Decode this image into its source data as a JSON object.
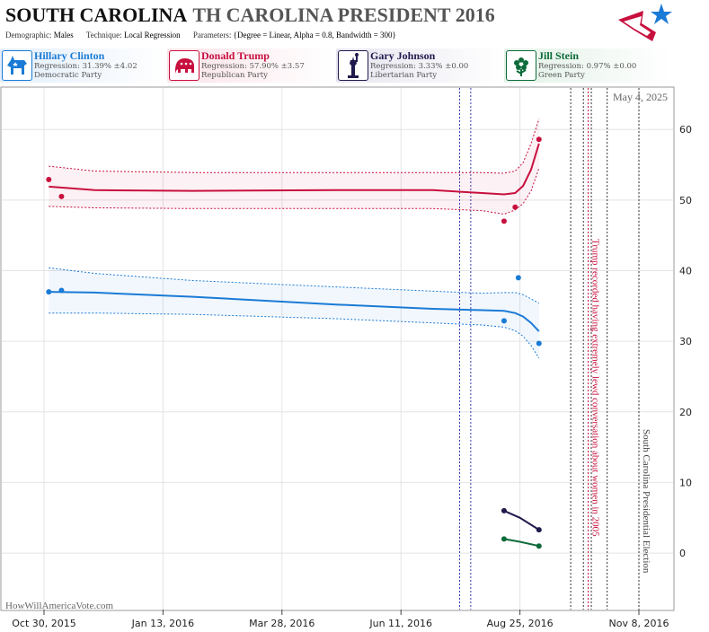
{
  "header": {
    "title_state": "SOUTH CAROLINA",
    "title_rest": "TH CAROLINA PRESIDENT 2016",
    "demographic_label": "Demographic:",
    "demographic_value": "Males",
    "technique_label": "Technique:",
    "technique_value": "Local Regression",
    "parameters_label": "Parameters:",
    "parameters_value": "{Degree = Linear, Alpha = 0.8, Bandwidth = 300}"
  },
  "candidates": [
    {
      "name": "Hillary Clinton",
      "regression": "Regression: 31.39% ±4.02",
      "party": "Democratic Party",
      "color": "#1a7bd6",
      "icon": "donkey-icon"
    },
    {
      "name": "Donald Trump",
      "regression": "Regression: 57.90% ±3.57",
      "party": "Republican Party",
      "color": "#c8103f",
      "icon": "elephant-icon"
    },
    {
      "name": "Gary Johnson",
      "regression": "Regression: 3.33% ±0.00",
      "party": "Libertarian Party",
      "color": "#1f1a4d",
      "icon": "liberty-statue-icon"
    },
    {
      "name": "Jill Stein",
      "regression": "Regression: 0.97% ±0.00",
      "party": "Green Party",
      "color": "#0d6b3a",
      "icon": "flower-icon"
    }
  ],
  "chart_data": {
    "type": "line",
    "date_label": "May 4, 2025",
    "watermark": "HowWillAmericaVote.com",
    "x_ticks": [
      "Oct 30, 2015",
      "Jan 13, 2016",
      "Mar 28, 2016",
      "Jun 11, 2016",
      "Aug 25, 2016",
      "Nov 8, 2016"
    ],
    "ylim": [
      -8,
      66
    ],
    "y_ticks": [
      0,
      10,
      20,
      30,
      40,
      50,
      60
    ],
    "grid": true,
    "series": [
      {
        "name": "Donald Trump",
        "color": "#c8103f",
        "points": [
          [
            "2015-11-02",
            52.9
          ],
          [
            "2015-11-10",
            50.5
          ],
          [
            "2016-08-15",
            47.0
          ],
          [
            "2016-08-22",
            49.0
          ],
          [
            "2016-09-06",
            58.6
          ]
        ],
        "fit": [
          [
            "2015-11-02",
            51.9
          ],
          [
            "2015-12-01",
            51.4
          ],
          [
            "2016-02-01",
            51.3
          ],
          [
            "2016-05-01",
            51.4
          ],
          [
            "2016-07-01",
            51.4
          ],
          [
            "2016-08-01",
            51.0
          ],
          [
            "2016-08-15",
            50.8
          ],
          [
            "2016-08-22",
            51.0
          ],
          [
            "2016-08-27",
            52.0
          ],
          [
            "2016-09-01",
            54.3
          ],
          [
            "2016-09-06",
            58.0
          ]
        ],
        "band_upper": [
          [
            "2015-11-02",
            54.8
          ],
          [
            "2015-12-01",
            54.1
          ],
          [
            "2016-02-01",
            53.9
          ],
          [
            "2016-05-01",
            53.9
          ],
          [
            "2016-07-01",
            53.9
          ],
          [
            "2016-08-01",
            53.9
          ],
          [
            "2016-08-15",
            53.8
          ],
          [
            "2016-08-22",
            54.1
          ],
          [
            "2016-08-27",
            55.3
          ],
          [
            "2016-09-01",
            58.0
          ],
          [
            "2016-09-06",
            61.5
          ]
        ],
        "band_lower": [
          [
            "2015-11-02",
            49.1
          ],
          [
            "2015-12-01",
            48.9
          ],
          [
            "2016-02-01",
            48.8
          ],
          [
            "2016-05-01",
            48.8
          ],
          [
            "2016-07-01",
            48.8
          ],
          [
            "2016-08-01",
            48.5
          ],
          [
            "2016-08-15",
            48.0
          ],
          [
            "2016-08-22",
            48.6
          ],
          [
            "2016-08-27",
            49.5
          ],
          [
            "2016-09-01",
            51.3
          ],
          [
            "2016-09-06",
            54.5
          ]
        ]
      },
      {
        "name": "Hillary Clinton",
        "color": "#1a7bd6",
        "points": [
          [
            "2015-11-02",
            37.0
          ],
          [
            "2015-11-10",
            37.2
          ],
          [
            "2016-08-15",
            32.9
          ],
          [
            "2016-08-24",
            39.0
          ],
          [
            "2016-09-06",
            29.7
          ]
        ],
        "fit": [
          [
            "2015-11-02",
            37.0
          ],
          [
            "2015-12-01",
            36.9
          ],
          [
            "2016-02-01",
            36.3
          ],
          [
            "2016-05-01",
            35.2
          ],
          [
            "2016-07-01",
            34.6
          ],
          [
            "2016-08-01",
            34.4
          ],
          [
            "2016-08-15",
            34.3
          ],
          [
            "2016-08-22",
            34.0
          ],
          [
            "2016-08-27",
            33.5
          ],
          [
            "2016-09-01",
            32.6
          ],
          [
            "2016-09-06",
            31.4
          ]
        ],
        "band_upper": [
          [
            "2015-11-02",
            40.4
          ],
          [
            "2015-12-01",
            39.6
          ],
          [
            "2016-02-01",
            38.6
          ],
          [
            "2016-05-01",
            37.7
          ],
          [
            "2016-07-01",
            37.1
          ],
          [
            "2016-08-01",
            36.8
          ],
          [
            "2016-08-15",
            36.9
          ],
          [
            "2016-08-22",
            36.9
          ],
          [
            "2016-08-27",
            36.6
          ],
          [
            "2016-09-01",
            36.0
          ],
          [
            "2016-09-06",
            35.4
          ]
        ],
        "band_lower": [
          [
            "2015-11-02",
            34.0
          ],
          [
            "2015-12-01",
            34.0
          ],
          [
            "2016-02-01",
            33.8
          ],
          [
            "2016-05-01",
            33.2
          ],
          [
            "2016-07-01",
            32.6
          ],
          [
            "2016-08-01",
            32.3
          ],
          [
            "2016-08-15",
            32.0
          ],
          [
            "2016-08-22",
            31.5
          ],
          [
            "2016-08-27",
            30.7
          ],
          [
            "2016-09-01",
            29.4
          ],
          [
            "2016-09-06",
            27.6
          ]
        ]
      },
      {
        "name": "Gary Johnson",
        "color": "#1f1a4d",
        "points": [
          [
            "2016-08-15",
            6.0
          ],
          [
            "2016-09-06",
            3.3
          ]
        ],
        "fit": [
          [
            "2016-08-15",
            6.0
          ],
          [
            "2016-08-25",
            5.0
          ],
          [
            "2016-09-06",
            3.3
          ]
        ]
      },
      {
        "name": "Jill Stein",
        "color": "#0d6b3a",
        "points": [
          [
            "2016-08-15",
            2.0
          ],
          [
            "2016-09-06",
            1.0
          ]
        ],
        "fit": [
          [
            "2016-08-15",
            2.0
          ],
          [
            "2016-08-25",
            1.6
          ],
          [
            "2016-09-06",
            1.0
          ]
        ]
      }
    ],
    "vlines_blue": [
      "2016-07-18",
      "2016-07-25"
    ],
    "vlines_black": [
      "2016-09-26",
      "2016-10-04",
      "2016-10-09",
      "2016-10-19",
      "2016-11-08"
    ],
    "vline_red": "2016-10-07",
    "annotations": [
      {
        "text": "Trump recorded having extremely lewd conversation about women in 2005",
        "date": "2016-10-07",
        "color": "#c8103f"
      },
      {
        "text": "South Carolina Presidential Election",
        "date": "2016-11-08",
        "color": "#444444"
      }
    ]
  }
}
